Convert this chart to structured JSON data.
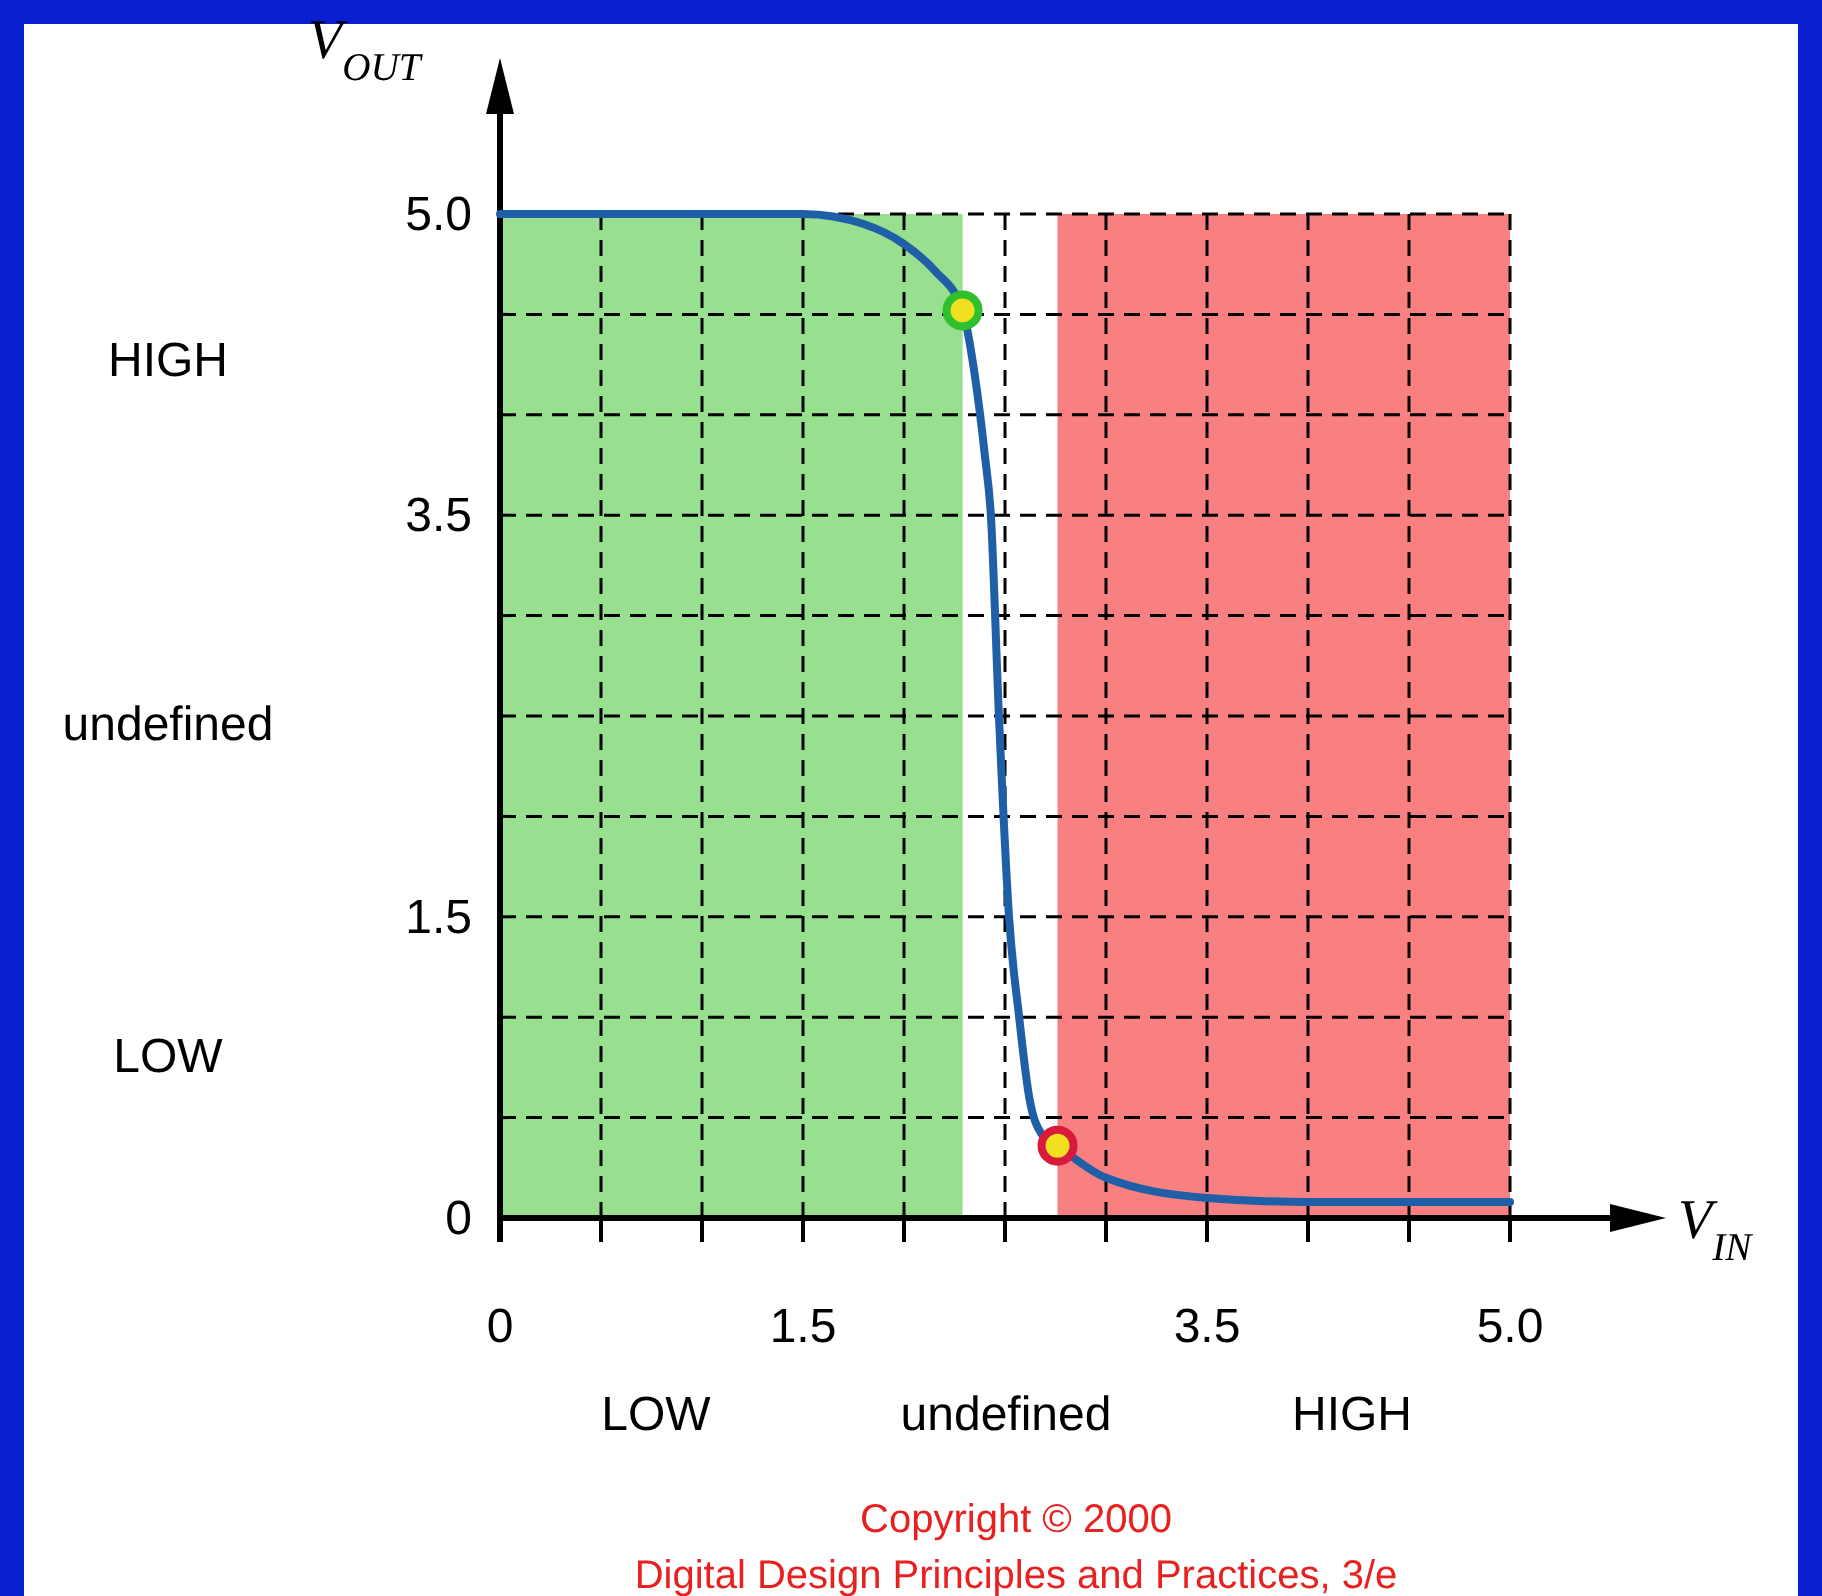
{
  "chart_data": {
    "type": "line",
    "xlabel": "V$_{IN}$",
    "ylabel": "V$_{OUT}$",
    "xlim": [
      0,
      5
    ],
    "ylim": [
      0,
      5
    ],
    "xticks": [
      0,
      {
        "value": 0.5,
        "label": null
      },
      {
        "value": 1,
        "label": null
      },
      1.5,
      {
        "value": 2,
        "label": null
      },
      {
        "value": 2.5,
        "label": null
      },
      {
        "value": 3,
        "label": null
      },
      3.5,
      {
        "value": 4,
        "label": null
      },
      {
        "value": 4.5,
        "label": null
      },
      {
        "value": 5,
        "label": "5.0"
      }
    ],
    "yticks": [
      0,
      {
        "value": 0.5,
        "label": null
      },
      {
        "value": 1,
        "label": null
      },
      1.5,
      {
        "value": 2,
        "label": null
      },
      {
        "value": 2.5,
        "label": null
      },
      {
        "value": 3,
        "label": null
      },
      3.5,
      {
        "value": 4,
        "label": null
      },
      {
        "value": 4.5,
        "label": null
      },
      {
        "value": 5,
        "label": "5.0"
      }
    ],
    "grid": true,
    "line_style": "solid",
    "series": [
      {
        "color": "#1f5fa8",
        "x": [
          0,
          1.5,
          1.8,
          2.0,
          2.15,
          2.29,
          2.35,
          2.4,
          2.43,
          2.47,
          2.52,
          2.57,
          2.62,
          2.68,
          2.76,
          3.0,
          3.5,
          4.0,
          5.0
        ],
        "values": [
          5,
          5,
          4.95,
          4.85,
          4.72,
          4.52,
          4.2,
          3.8,
          3.5,
          2.5,
          1.5,
          1.0,
          0.6,
          0.42,
          0.36,
          0.2,
          0.1,
          0.08,
          0.08
        ]
      },
      {
        "type": "scatter",
        "marker": "circle",
        "color": "#2fbf2f",
        "x": [
          2.29
        ],
        "values": [
          4.52
        ]
      },
      {
        "type": "scatter",
        "marker": "circle",
        "color": "#d81b3c",
        "x": [
          2.76
        ],
        "values": [
          0.36
        ]
      }
    ],
    "bands": [
      {
        "axis": "x",
        "from": 0,
        "to": 2.29,
        "color": "#98e090"
      },
      {
        "axis": "x",
        "from": 2.76,
        "to": 5,
        "color": "#f88080"
      }
    ],
    "annotations": [
      "HIGH",
      "undefined",
      "LOW",
      "LOW",
      "undefined",
      "HIGH",
      "Copyright © 2000",
      "Digital Design Principles and Practices, 3/e"
    ]
  }
}
